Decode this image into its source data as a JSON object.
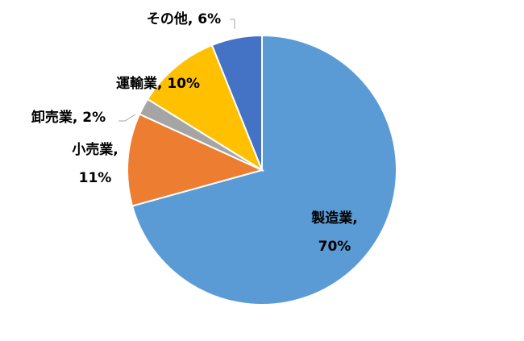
{
  "chart_data": {
    "type": "pie",
    "title": "",
    "start_angle": "top, clockwise",
    "slices": [
      {
        "label": "製造業",
        "value": 70,
        "text": "製造業,",
        "pct": "70%",
        "color": "#5B9BD5"
      },
      {
        "label": "小売業",
        "value": 11,
        "text": "小売業,",
        "pct": "11%",
        "color": "#ED7D31"
      },
      {
        "label": "卸売業",
        "value": 2,
        "text": "卸売業, 2%",
        "pct": "",
        "color": "#A5A5A5"
      },
      {
        "label": "運輸業",
        "value": 10,
        "text": "運輸業, 10%",
        "pct": "",
        "color": "#FFC000"
      },
      {
        "label": "その他",
        "value": 6,
        "text": "その他, 6%",
        "pct": "",
        "color": "#4472C4"
      }
    ]
  }
}
